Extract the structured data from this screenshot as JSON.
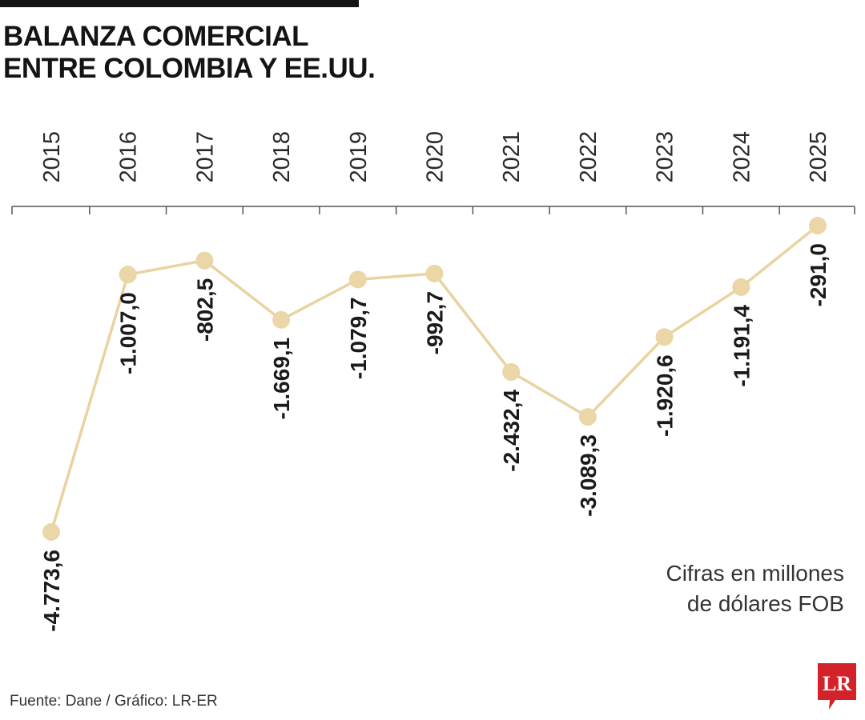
{
  "header": {
    "title_line1": "BALANZA COMERCIAL",
    "title_line2": "ENTRE COLOMBIA Y EE.UU."
  },
  "note": {
    "line1": "Cifras en millones",
    "line2": "de dólares FOB"
  },
  "footer": {
    "source": "Fuente: Dane  / Gráfico: LR-ER"
  },
  "logo": {
    "text": "LR",
    "color": "#d2232a"
  },
  "colors": {
    "line": "#e8d3a1",
    "point": "#ead6a6",
    "axis": "#555555",
    "text": "#1a1a1a",
    "title": "#141414"
  },
  "chart_data": {
    "type": "line",
    "categories": [
      "2015",
      "2016",
      "2017",
      "2018",
      "2019",
      "2020",
      "2021",
      "2022",
      "2023",
      "2024",
      "2025"
    ],
    "values": [
      -4773.6,
      -1007.0,
      -802.5,
      -1669.1,
      -1079.7,
      -992.7,
      -2432.4,
      -3089.3,
      -1920.6,
      -1191.4,
      -291.0
    ],
    "value_labels": [
      "-4.773,6",
      "-1.007,0",
      "-802,5",
      "-1.669,1",
      "-1.079,7",
      "-992,7",
      "-2.432,4",
      "-3.089,3",
      "-1.920,6",
      "-1.191,4",
      "-291,0"
    ],
    "unit": "millones de dólares FOB",
    "ylim": [
      -4773.6,
      -291.0
    ],
    "x_axis_position": "top",
    "tick_label_orientation": "vertical",
    "grid": false,
    "legend": "none"
  }
}
